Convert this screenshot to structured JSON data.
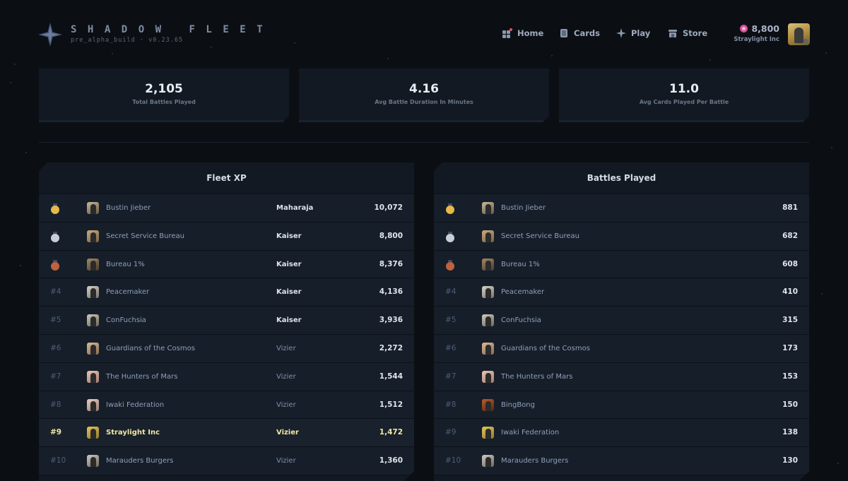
{
  "brand": {
    "title": "SHADOW FLEET",
    "subtitle": "pre_alpha_build · v0.23.65"
  },
  "nav": {
    "home": "Home",
    "cards": "Cards",
    "play": "Play",
    "store": "Store"
  },
  "user": {
    "credits": "8,800",
    "name": "Straylight Inc"
  },
  "stats": [
    {
      "value": "2,105",
      "label": "Total Battles Played"
    },
    {
      "value": "4.16",
      "label": "Avg Battle Duration In Minutes"
    },
    {
      "value": "11.0",
      "label": "Avg Cards Played Per Battle"
    }
  ],
  "fleet_xp": {
    "title": "Fleet XP",
    "rows": [
      {
        "rank": "",
        "medal": "gold",
        "name": "Bustin Jieber",
        "title": "Maharaja",
        "value": "10,072"
      },
      {
        "rank": "",
        "medal": "silver",
        "name": "Secret Service Bureau",
        "title": "Kaiser",
        "value": "8,800"
      },
      {
        "rank": "",
        "medal": "bronze",
        "name": "Bureau 1%",
        "title": "Kaiser",
        "value": "8,376"
      },
      {
        "rank": "#4",
        "medal": "",
        "name": "Peacemaker",
        "title": "Kaiser",
        "value": "4,136"
      },
      {
        "rank": "#5",
        "medal": "",
        "name": "ConFuchsia",
        "title": "Kaiser",
        "value": "3,936"
      },
      {
        "rank": "#6",
        "medal": "",
        "name": "Guardians of the Cosmos",
        "title": "Vizier",
        "value": "2,272"
      },
      {
        "rank": "#7",
        "medal": "",
        "name": "The Hunters of Mars",
        "title": "Vizier",
        "value": "1,544"
      },
      {
        "rank": "#8",
        "medal": "",
        "name": "Iwaki Federation",
        "title": "Vizier",
        "value": "1,512"
      },
      {
        "rank": "#9",
        "medal": "",
        "name": "Straylight Inc",
        "title": "Vizier",
        "value": "1,472"
      },
      {
        "rank": "#10",
        "medal": "",
        "name": "Marauders Burgers",
        "title": "Vizier",
        "value": "1,360"
      }
    ]
  },
  "battles_played": {
    "title": "Battles Played",
    "rows": [
      {
        "rank": "",
        "medal": "gold",
        "name": "Bustin Jieber",
        "value": "881"
      },
      {
        "rank": "",
        "medal": "silver",
        "name": "Secret Service Bureau",
        "value": "682"
      },
      {
        "rank": "",
        "medal": "bronze",
        "name": "Bureau 1%",
        "value": "608"
      },
      {
        "rank": "#4",
        "medal": "",
        "name": "Peacemaker",
        "value": "410"
      },
      {
        "rank": "#5",
        "medal": "",
        "name": "ConFuchsia",
        "value": "315"
      },
      {
        "rank": "#6",
        "medal": "",
        "name": "Guardians of the Cosmos",
        "value": "173"
      },
      {
        "rank": "#7",
        "medal": "",
        "name": "The Hunters of Mars",
        "value": "153"
      },
      {
        "rank": "#8",
        "medal": "",
        "name": "BingBong",
        "value": "150"
      },
      {
        "rank": "#9",
        "medal": "",
        "name": "Iwaki Federation",
        "value": "138"
      },
      {
        "rank": "#10",
        "medal": "",
        "name": "Marauders Burgers",
        "value": "130"
      }
    ]
  },
  "colors": {
    "background": "#0b0f14",
    "panel": "#121923",
    "gold": "#e7b84a",
    "silver": "#c9ced6",
    "bronze": "#c0613d",
    "highlight_text": "#f2e6a4",
    "credit": "#d9509a"
  }
}
